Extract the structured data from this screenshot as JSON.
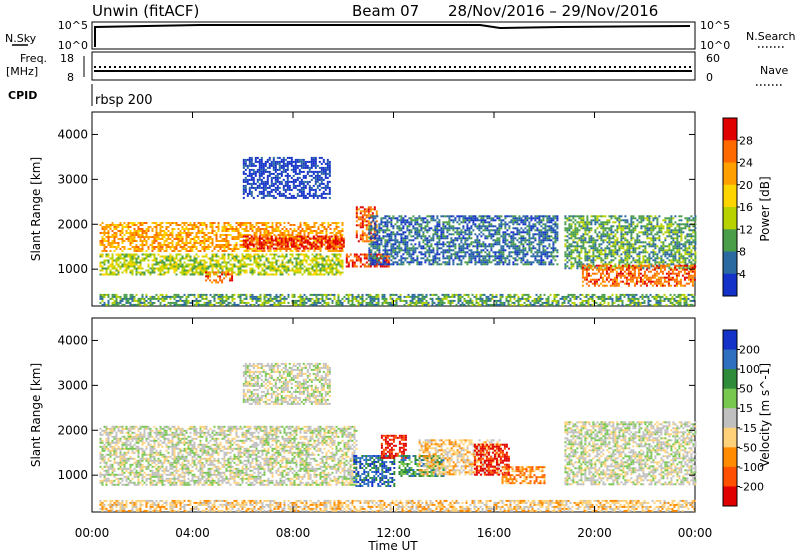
{
  "header": {
    "station": "Unwin (fitACF)",
    "beam": "Beam 07",
    "date_range": "28/Nov/2016 – 29/Nov/2016"
  },
  "top_panels": {
    "nsky_label": "N.Sky",
    "nsky_ticks": [
      "10^5",
      "10^0"
    ],
    "nsearch_label": "N.Search",
    "nsearch_ticks": [
      "10^5",
      "10^0"
    ],
    "freq_label_1": "Freq.",
    "freq_label_2": "[MHz]",
    "freq_ticks": [
      "18",
      "8"
    ],
    "nave_label": "Nave",
    "nave_ticks": [
      "60",
      "0"
    ],
    "cpid_label": "CPID",
    "cpid_value": "rbsp 200"
  },
  "chart_data": [
    {
      "type": "heatmap",
      "title": "",
      "ylabel": "Slant Range [km]",
      "ylim": [
        180,
        4500
      ],
      "yticks": [
        "4000",
        "3000",
        "2000",
        "1000"
      ],
      "xlim": [
        0,
        24
      ],
      "colorbar_label": "Power [dB]",
      "colorbar_ticks": [
        "28",
        "24",
        "20",
        "16",
        "12",
        "8",
        "4"
      ],
      "colorbar_colors": [
        "#e00000",
        "#ff6a00",
        "#ffa000",
        "#ffd500",
        "#b8d200",
        "#4a9e4a",
        "#2a6aa0",
        "#1432c8"
      ],
      "bands": [
        {
          "x0": 0.3,
          "x1": 10.0,
          "r0": 1400,
          "r1": 2050,
          "level": 5
        },
        {
          "x0": 6.0,
          "x1": 10.0,
          "r0": 1450,
          "r1": 1750,
          "level": 7
        },
        {
          "x0": 0.3,
          "x1": 10.0,
          "r0": 900,
          "r1": 1350,
          "level": 3
        },
        {
          "x0": 4.5,
          "x1": 5.6,
          "r0": 700,
          "r1": 950,
          "level": 6
        },
        {
          "x0": 10.1,
          "x1": 11.8,
          "r0": 1050,
          "r1": 1350,
          "level": 7
        },
        {
          "x0": 10.5,
          "x1": 11.3,
          "r0": 1600,
          "r1": 2400,
          "level": 6
        },
        {
          "x0": 11.0,
          "x1": 18.5,
          "r0": 1100,
          "r1": 2200,
          "level": 1
        },
        {
          "x0": 6.0,
          "x1": 9.5,
          "r0": 2600,
          "r1": 3500,
          "level": 0
        },
        {
          "x0": 18.8,
          "x1": 24.0,
          "r0": 1000,
          "r1": 2200,
          "level": 2
        },
        {
          "x0": 19.5,
          "x1": 24.0,
          "r0": 650,
          "r1": 1100,
          "level": 6
        },
        {
          "x0": 0.3,
          "x1": 24.0,
          "r0": 200,
          "r1": 450,
          "level": 2
        }
      ]
    },
    {
      "type": "heatmap",
      "title": "",
      "ylabel": "Slant Range [km]",
      "ylim": [
        180,
        4500
      ],
      "yticks": [
        "4000",
        "3000",
        "2000",
        "1000"
      ],
      "xlim": [
        0,
        24
      ],
      "xlabel": "Time UT",
      "xticks": [
        "00:00",
        "04:00",
        "08:00",
        "12:00",
        "16:00",
        "20:00",
        "00:00"
      ],
      "colorbar_label": "Velocity [m s^-1]",
      "colorbar_ticks": [
        "200",
        "100",
        "50",
        "15",
        "-15",
        "-50",
        "-100",
        "-200"
      ],
      "colorbar_colors": [
        "#1432c8",
        "#3070c0",
        "#2e8b3a",
        "#78c850",
        "#c0c0c0",
        "#ffd27a",
        "#ff8c00",
        "#ff5000",
        "#e00000"
      ],
      "bands": [
        {
          "x0": 0.3,
          "x1": 10.5,
          "r0": 800,
          "r1": 2100,
          "level": 4
        },
        {
          "x0": 6.0,
          "x1": 9.5,
          "r0": 2600,
          "r1": 3500,
          "level": 4
        },
        {
          "x0": 10.4,
          "x1": 12.0,
          "r0": 750,
          "r1": 1450,
          "level": 7
        },
        {
          "x0": 11.5,
          "x1": 12.5,
          "r0": 1400,
          "r1": 1900,
          "level": 0
        },
        {
          "x0": 12.2,
          "x1": 14.0,
          "r0": 1000,
          "r1": 1450,
          "level": 6
        },
        {
          "x0": 13.0,
          "x1": 16.2,
          "r0": 1000,
          "r1": 1800,
          "level": 3
        },
        {
          "x0": 15.2,
          "x1": 16.6,
          "r0": 1000,
          "r1": 1700,
          "level": 0
        },
        {
          "x0": 16.3,
          "x1": 18.0,
          "r0": 800,
          "r1": 1200,
          "level": 2
        },
        {
          "x0": 18.8,
          "x1": 24.0,
          "r0": 800,
          "r1": 2200,
          "level": 4
        },
        {
          "x0": 0.3,
          "x1": 24.0,
          "r0": 200,
          "r1": 450,
          "level": 3
        }
      ]
    }
  ]
}
